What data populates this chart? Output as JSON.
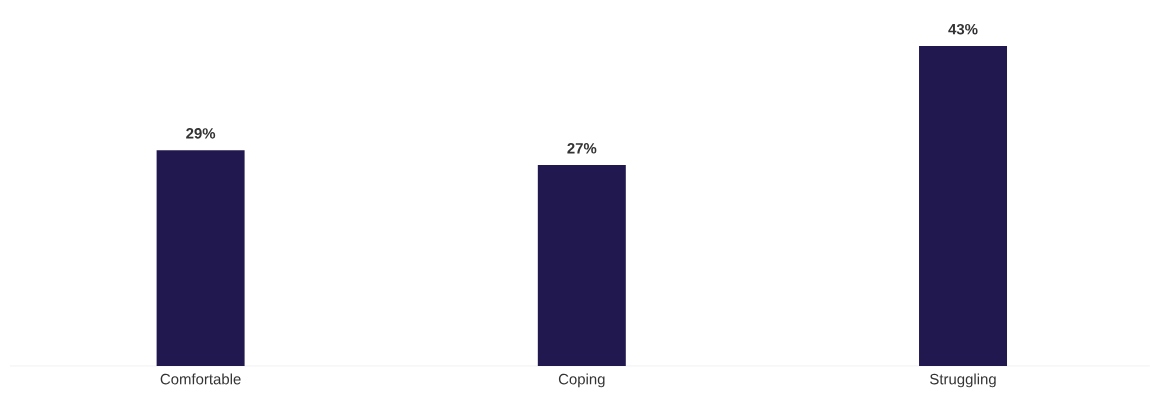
{
  "chart_data": {
    "type": "bar",
    "categories": [
      "Comfortable",
      "Coping",
      "Struggling"
    ],
    "values": [
      29,
      27,
      43
    ],
    "value_labels": [
      "29%",
      "27%",
      "43%"
    ],
    "color": "#20184e"
  }
}
